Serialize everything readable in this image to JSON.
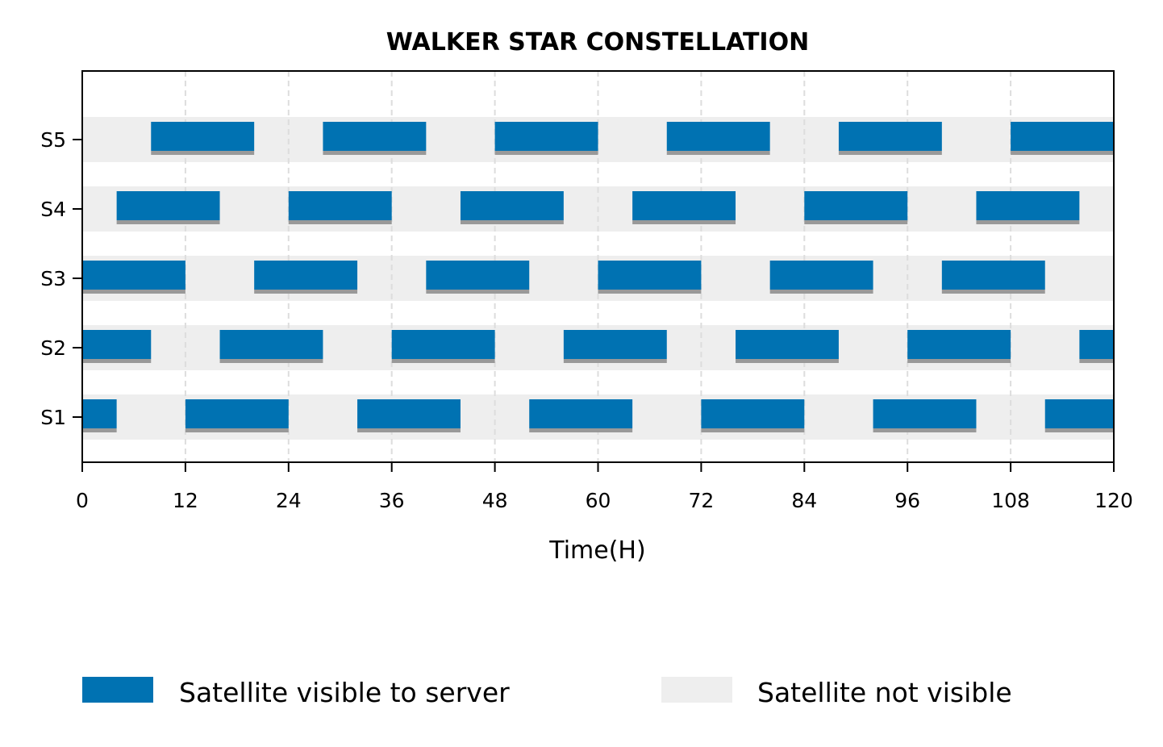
{
  "chart_data": {
    "type": "bar",
    "subtype": "gantt",
    "title": "WALKER STAR CONSTELLATION",
    "xlabel": "Time(H)",
    "ylabel": "",
    "xlim": [
      0,
      120
    ],
    "xticks": [
      0,
      12,
      24,
      36,
      48,
      60,
      72,
      84,
      96,
      108,
      120
    ],
    "grid": "vertical dashed",
    "legend_position": "bottom-center",
    "colors": {
      "visible": "#0072B2",
      "not_visible": "#EEEEEE",
      "bar_shadow": "#999999",
      "grid": "#DDDDDD"
    },
    "legend": [
      {
        "label": "Satellite visible to server",
        "color": "#0072B2"
      },
      {
        "label": "Satellite not visible",
        "color": "#EEEEEE"
      }
    ],
    "series": [
      {
        "name": "S1",
        "intervals": [
          [
            0,
            4
          ],
          [
            12,
            24
          ],
          [
            32,
            44
          ],
          [
            52,
            64
          ],
          [
            72,
            84
          ],
          [
            92,
            104
          ],
          [
            112,
            120
          ]
        ]
      },
      {
        "name": "S2",
        "intervals": [
          [
            0,
            8
          ],
          [
            16,
            28
          ],
          [
            36,
            48
          ],
          [
            56,
            68
          ],
          [
            76,
            88
          ],
          [
            96,
            108
          ],
          [
            116,
            120
          ]
        ]
      },
      {
        "name": "S3",
        "intervals": [
          [
            0,
            12
          ],
          [
            20,
            32
          ],
          [
            40,
            52
          ],
          [
            60,
            72
          ],
          [
            80,
            92
          ],
          [
            100,
            112
          ]
        ]
      },
      {
        "name": "S4",
        "intervals": [
          [
            4,
            16
          ],
          [
            24,
            36
          ],
          [
            44,
            56
          ],
          [
            64,
            76
          ],
          [
            84,
            96
          ],
          [
            104,
            116
          ]
        ]
      },
      {
        "name": "S5",
        "intervals": [
          [
            8,
            20
          ],
          [
            28,
            40
          ],
          [
            48,
            60
          ],
          [
            68,
            80
          ],
          [
            88,
            100
          ],
          [
            108,
            120
          ]
        ]
      }
    ]
  }
}
